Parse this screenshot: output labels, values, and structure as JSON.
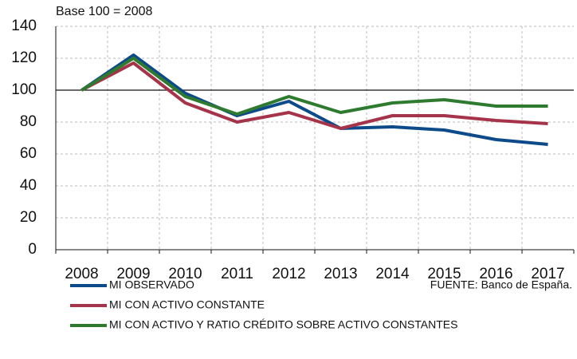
{
  "chart_data": {
    "type": "line",
    "subtitle": "Base 100 = 2008",
    "source": "FUENTE: Banco de España.",
    "categories": [
      "2008",
      "2009",
      "2010",
      "2011",
      "2012",
      "2013",
      "2014",
      "2015",
      "2016",
      "2017"
    ],
    "series": [
      {
        "name": "MI OBSERVADO",
        "color": "#0d4a8a",
        "values": [
          100,
          122,
          98,
          84,
          93,
          76,
          77,
          75,
          69,
          66
        ]
      },
      {
        "name": "MI CON ACTIVO CONSTANTE",
        "color": "#a5344a",
        "values": [
          100,
          117,
          92,
          80,
          86,
          76,
          84,
          84,
          81,
          79
        ]
      },
      {
        "name": "MI CON ACTIVO Y RATIO CRÉDITO SOBRE ACTIVO CONSTANTES",
        "color": "#2e7a2f",
        "values": [
          100,
          120,
          96,
          85,
          96,
          86,
          92,
          94,
          90,
          90
        ]
      }
    ],
    "reference_line": 100,
    "ylim": [
      0,
      140
    ],
    "yticks": [
      0,
      20,
      40,
      60,
      80,
      100,
      120,
      140
    ],
    "grid": true
  }
}
